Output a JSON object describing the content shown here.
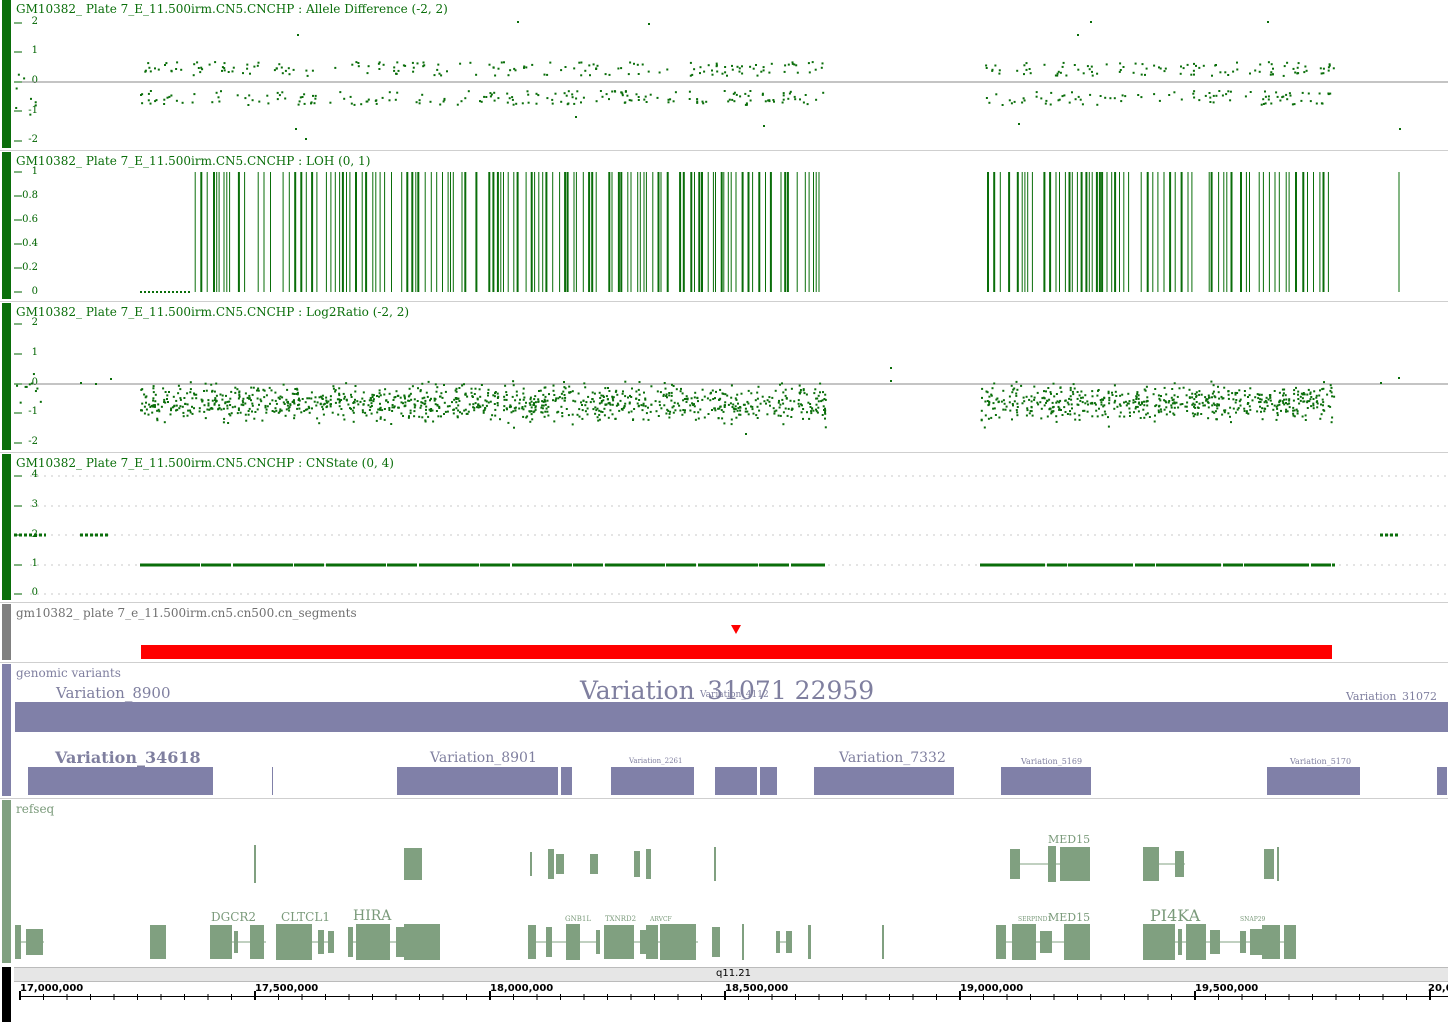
{
  "colors": {
    "data_green": "#0a6e0a",
    "segment_red": "#ff0000",
    "variant_fill": "#8080a8",
    "refseq_fill": "#80a080",
    "segments_bar": "#808080",
    "ruler_bar": "#000000"
  },
  "tracks": {
    "allele_difference": {
      "title": "GM10382_ Plate 7_E_11.500irm.CN5.CNCHP : Allele Difference (-2, 2)",
      "ylabels": [
        "2",
        "1",
        "0",
        "-1",
        "-2"
      ]
    },
    "loh": {
      "title": "GM10382_ Plate 7_E_11.500irm.CN5.CNCHP : LOH (0, 1)",
      "ylabels": [
        "1",
        "0.8",
        "0.6",
        "0.4",
        "0.2",
        "0"
      ]
    },
    "log2ratio": {
      "title": "GM10382_ Plate 7_E_11.500irm.CN5.CNCHP : Log2Ratio (-2, 2)",
      "ylabels": [
        "2",
        "1",
        "0",
        "-1",
        "-2"
      ]
    },
    "cnstate": {
      "title": "GM10382_ Plate 7_E_11.500irm.CN5.CNCHP : CNState (0, 4)",
      "ylabels": [
        "4",
        "3",
        "2",
        "1",
        "0"
      ]
    },
    "segments": {
      "title": "gm10382_ plate 7_e_11.500irm.cn5.cn500.cn_segments"
    },
    "genomic_variants": {
      "title": "genomic variants",
      "labels": {
        "big_overlap": "Variation_31071 22959",
        "left_cluster": "Variation_8900",
        "right_end": "Variation_31072",
        "row2_1": "Variation_34618",
        "row2_2": "Variation_8901",
        "row2_3": "Variation_2261",
        "row2_4": "Variation_7332",
        "row2_5": "Variation_5169",
        "row2_6": "Variation_5170",
        "small_mid": "Variation_4112"
      }
    },
    "refseq": {
      "title": "refseq",
      "labels": {
        "dgcr2": "DGCR2",
        "cltcl1": "CLTCL1",
        "hira": "HIRA",
        "gnb1l": "GNB1L",
        "txnrd2": "TXNRD2",
        "arvcf": "ARVCF",
        "med15_top": "MED15",
        "med15_bottom": "MED15",
        "pi4ka": "PI4KA",
        "serpind1": "SERPIND1",
        "snap29": "SNAP29"
      }
    }
  },
  "ruler": {
    "band": "q11.21",
    "ticks": [
      "17,000,000",
      "17,500,000",
      "18,000,000",
      "18,500,000",
      "19,000,000",
      "19,500,000",
      "20,0"
    ]
  }
}
